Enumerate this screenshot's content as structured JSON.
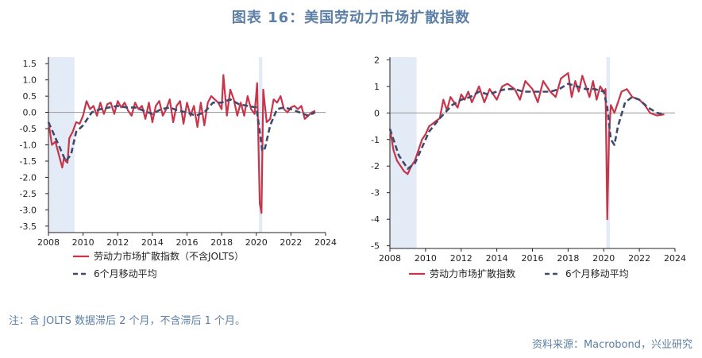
{
  "title": "图表 16：美国劳动力市场扩散指数",
  "note": "注：含 JOLTS 数据滞后 2 个月，不含滞后 1 个月。",
  "source": "资料来源：Macrobond，兴业研究",
  "colors": {
    "series_main": "#c8344a",
    "series_ma": "#3d4a6b",
    "recession": "#e3ebf6",
    "zero": "#9a9a9a"
  },
  "chart_data": [
    {
      "type": "line",
      "title": "",
      "xlabel": "",
      "ylabel": "",
      "xlim": [
        2008,
        2024
      ],
      "ylim": [
        -3.7,
        1.7
      ],
      "xticks": [
        2008,
        2010,
        2012,
        2014,
        2016,
        2018,
        2020,
        2022,
        2024
      ],
      "yticks": [
        1.5,
        1.0,
        0.5,
        0.0,
        -0.5,
        -1.0,
        -1.5,
        -2.0,
        -2.5,
        -3.0,
        -3.5
      ],
      "ytick_labels": [
        "1.5",
        "1.0",
        "0.5",
        "0.0",
        "-0.5",
        "-1.0",
        "-1.5",
        "-2.0",
        "-2.5",
        "-3.0",
        "-3.5"
      ],
      "recessions": [
        [
          2008.0,
          2009.5
        ],
        [
          2020.15,
          2020.35
        ]
      ],
      "legend_position": "bottom",
      "series": [
        {
          "name": "劳动力市场扩散指数（不含JOLTS）",
          "style": "solid",
          "x": [
            2008.0,
            2008.2,
            2008.4,
            2008.6,
            2008.8,
            2008.9,
            2009.0,
            2009.1,
            2009.2,
            2009.4,
            2009.6,
            2009.8,
            2010.0,
            2010.2,
            2010.4,
            2010.6,
            2010.8,
            2011.0,
            2011.2,
            2011.4,
            2011.6,
            2011.8,
            2012.0,
            2012.2,
            2012.4,
            2012.6,
            2012.8,
            2013.0,
            2013.2,
            2013.4,
            2013.6,
            2013.8,
            2014.0,
            2014.2,
            2014.4,
            2014.6,
            2014.8,
            2015.0,
            2015.2,
            2015.4,
            2015.6,
            2015.8,
            2016.0,
            2016.2,
            2016.4,
            2016.6,
            2016.8,
            2017.0,
            2017.2,
            2017.4,
            2017.6,
            2017.8,
            2018.0,
            2018.1,
            2018.3,
            2018.5,
            2018.7,
            2018.9,
            2019.1,
            2019.3,
            2019.5,
            2019.7,
            2019.9,
            2020.05,
            2020.2,
            2020.3,
            2020.4,
            2020.6,
            2020.8,
            2021.0,
            2021.2,
            2021.4,
            2021.6,
            2021.8,
            2022.0,
            2022.2,
            2022.4,
            2022.6,
            2022.8,
            2023.0,
            2023.2,
            2023.4
          ],
          "y": [
            -0.3,
            -1.0,
            -0.9,
            -1.3,
            -1.7,
            -1.4,
            -1.5,
            -1.55,
            -0.8,
            -0.6,
            -0.3,
            -0.35,
            -0.1,
            0.35,
            0.1,
            0.2,
            -0.1,
            0.3,
            -0.05,
            0.25,
            0.3,
            -0.05,
            0.35,
            0.15,
            0.3,
            0.05,
            -0.1,
            0.3,
            0.1,
            0.2,
            -0.2,
            0.3,
            -0.3,
            0.2,
            0.35,
            -0.1,
            0.1,
            0.4,
            -0.3,
            0.2,
            0.35,
            -0.35,
            0.3,
            -0.1,
            0.2,
            -0.45,
            0.3,
            -0.4,
            0.3,
            0.5,
            0.4,
            0.3,
            0.1,
            1.15,
            -0.1,
            0.7,
            0.4,
            -0.1,
            0.3,
            -0.1,
            0.5,
            0.1,
            -0.05,
            0.9,
            -2.8,
            -3.1,
            0.7,
            -0.3,
            -0.2,
            0.4,
            0.3,
            0.5,
            0.1,
            0.0,
            0.15,
            0.2,
            0.1,
            0.2,
            -0.2,
            -0.1,
            0.0,
            0.05
          ]
        },
        {
          "name": "6个月移动平均",
          "style": "dashed",
          "x": [
            2008.0,
            2008.5,
            2009.0,
            2009.3,
            2009.6,
            2010.0,
            2010.5,
            2011.0,
            2011.5,
            2012.0,
            2012.5,
            2013.0,
            2013.5,
            2014.0,
            2014.5,
            2015.0,
            2015.5,
            2016.0,
            2016.5,
            2017.0,
            2017.5,
            2018.0,
            2018.5,
            2019.0,
            2019.5,
            2020.0,
            2020.2,
            2020.35,
            2020.5,
            2020.8,
            2021.2,
            2021.6,
            2022.0,
            2022.5,
            2023.0,
            2023.4
          ],
          "y": [
            -0.3,
            -0.9,
            -1.5,
            -1.3,
            -0.6,
            -0.4,
            0.0,
            0.1,
            0.15,
            0.2,
            0.15,
            0.15,
            0.05,
            -0.05,
            0.1,
            0.15,
            0.05,
            0.0,
            -0.1,
            0.0,
            0.3,
            0.3,
            0.4,
            0.25,
            0.2,
            0.15,
            -0.6,
            -1.2,
            -1.1,
            -0.4,
            0.1,
            0.15,
            0.1,
            0.0,
            -0.1,
            0.0
          ]
        }
      ]
    },
    {
      "type": "line",
      "title": "",
      "xlabel": "",
      "ylabel": "",
      "xlim": [
        2008,
        2024
      ],
      "ylim": [
        -5.1,
        2.1
      ],
      "xticks": [
        2008,
        2010,
        2012,
        2014,
        2016,
        2018,
        2020,
        2022,
        2024
      ],
      "yticks": [
        2,
        1,
        0,
        -1,
        -2,
        -3,
        -4,
        -5
      ],
      "ytick_labels": [
        "2",
        "1",
        "0",
        "-1",
        "-2",
        "-3",
        "-4",
        "-5"
      ],
      "recessions": [
        [
          2008.0,
          2009.5
        ],
        [
          2020.15,
          2020.35
        ]
      ],
      "legend_position": "bottom",
      "series": [
        {
          "name": "劳动力市场扩散指数",
          "style": "solid",
          "x": [
            2008.0,
            2008.2,
            2008.4,
            2008.6,
            2008.8,
            2009.0,
            2009.2,
            2009.4,
            2009.6,
            2009.8,
            2010.0,
            2010.2,
            2010.4,
            2010.6,
            2010.8,
            2011.0,
            2011.2,
            2011.4,
            2011.6,
            2011.8,
            2012.0,
            2012.2,
            2012.4,
            2012.6,
            2012.8,
            2013.0,
            2013.3,
            2013.6,
            2014.0,
            2014.3,
            2014.6,
            2015.0,
            2015.3,
            2015.6,
            2016.0,
            2016.3,
            2016.6,
            2017.0,
            2017.3,
            2017.6,
            2018.0,
            2018.2,
            2018.4,
            2018.6,
            2018.8,
            2019.0,
            2019.2,
            2019.4,
            2019.6,
            2019.8,
            2020.0,
            2020.1,
            2020.2,
            2020.3,
            2020.4,
            2020.6,
            2020.8,
            2021.0,
            2021.3,
            2021.6,
            2022.0,
            2022.3,
            2022.6,
            2023.0,
            2023.4
          ],
          "y": [
            -0.6,
            -1.4,
            -1.8,
            -2.0,
            -2.2,
            -2.3,
            -2.0,
            -1.8,
            -1.4,
            -1.0,
            -0.8,
            -0.5,
            -0.4,
            -0.3,
            -0.2,
            0.5,
            0.1,
            0.6,
            0.4,
            0.2,
            0.7,
            0.5,
            0.8,
            0.4,
            0.7,
            1.0,
            0.4,
            0.9,
            0.5,
            1.0,
            1.1,
            0.9,
            0.5,
            1.2,
            0.9,
            0.4,
            1.2,
            0.8,
            0.6,
            1.3,
            1.5,
            0.6,
            1.2,
            0.8,
            1.4,
            1.0,
            0.6,
            1.2,
            0.5,
            1.0,
            0.8,
            0.9,
            -4.0,
            -0.8,
            0.3,
            0.0,
            0.4,
            0.8,
            0.9,
            0.6,
            0.5,
            0.3,
            0.0,
            -0.1,
            -0.05
          ]
        },
        {
          "name": "6个月移动平均",
          "style": "dashed",
          "x": [
            2008.0,
            2008.5,
            2009.0,
            2009.4,
            2009.8,
            2010.2,
            2010.8,
            2011.5,
            2012.0,
            2012.5,
            2013.0,
            2013.5,
            2014.0,
            2014.5,
            2015.0,
            2015.5,
            2016.0,
            2016.5,
            2017.0,
            2017.5,
            2018.0,
            2018.5,
            2019.0,
            2019.5,
            2020.0,
            2020.2,
            2020.4,
            2020.6,
            2020.8,
            2021.2,
            2021.6,
            2022.0,
            2022.5,
            2023.0,
            2023.4
          ],
          "y": [
            -0.6,
            -1.6,
            -2.1,
            -1.9,
            -1.3,
            -0.7,
            -0.2,
            0.3,
            0.5,
            0.6,
            0.8,
            0.7,
            0.8,
            0.9,
            0.9,
            0.8,
            0.8,
            0.8,
            0.8,
            0.9,
            1.1,
            1.0,
            0.9,
            0.9,
            0.8,
            0.2,
            -1.0,
            -1.2,
            -0.5,
            0.4,
            0.6,
            0.5,
            0.2,
            0.0,
            -0.05
          ]
        }
      ]
    }
  ]
}
